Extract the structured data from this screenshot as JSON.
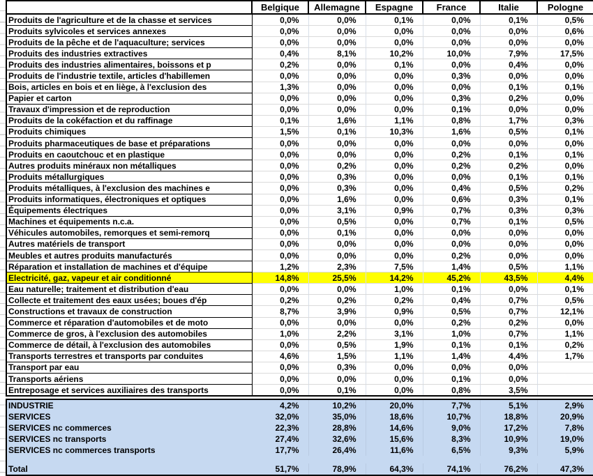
{
  "colors": {
    "highlight_yellow": "#ffff00",
    "summary_blue": "#c6d9f1"
  },
  "header": {
    "corner_label": "",
    "countries": [
      "Belgique",
      "Allemagne",
      "Espagne",
      "France",
      "Italie",
      "Pologne"
    ]
  },
  "table": {
    "rows": [
      {
        "label": "Produits de l'agriculture et de la chasse et services",
        "values": [
          "0,0%",
          "0,0%",
          "0,1%",
          "0,0%",
          "0,1%",
          "0,5%"
        ],
        "highlight": false
      },
      {
        "label": "Produits sylvicoles et services annexes",
        "values": [
          "0,0%",
          "0,0%",
          "0,0%",
          "0,0%",
          "0,0%",
          "0,6%"
        ],
        "highlight": false
      },
      {
        "label": "Produits de la pêche et de l'aquaculture; services",
        "values": [
          "0,0%",
          "0,0%",
          "0,0%",
          "0,0%",
          "0,0%",
          "0,0%"
        ],
        "highlight": false
      },
      {
        "label": "Produits des industries extractives",
        "values": [
          "0,4%",
          "8,1%",
          "10,2%",
          "10,0%",
          "7,9%",
          "17,5%"
        ],
        "highlight": false
      },
      {
        "label": "Produits des industries alimentaires, boissons et p",
        "values": [
          "0,2%",
          "0,0%",
          "0,1%",
          "0,0%",
          "0,4%",
          "0,0%"
        ],
        "highlight": false
      },
      {
        "label": "Produits de l'industrie textile, articles d'habillemen",
        "values": [
          "0,0%",
          "0,0%",
          "0,0%",
          "0,3%",
          "0,0%",
          "0,0%"
        ],
        "highlight": false
      },
      {
        "label": "Bois, articles en bois et en liège, à l'exclusion des",
        "values": [
          "1,3%",
          "0,0%",
          "0,0%",
          "0,0%",
          "0,1%",
          "0,1%"
        ],
        "highlight": false
      },
      {
        "label": "Papier et carton",
        "values": [
          "0,0%",
          "0,0%",
          "0,0%",
          "0,3%",
          "0,2%",
          "0,0%"
        ],
        "highlight": false
      },
      {
        "label": "Travaux d'impression et de reproduction",
        "values": [
          "0,0%",
          "0,0%",
          "0,0%",
          "0,1%",
          "0,0%",
          "0,0%"
        ],
        "highlight": false
      },
      {
        "label": "Produits de la cokéfaction et du raffinage",
        "values": [
          "0,1%",
          "1,6%",
          "1,1%",
          "0,8%",
          "1,7%",
          "0,3%"
        ],
        "highlight": false
      },
      {
        "label": "Produits chimiques",
        "values": [
          "1,5%",
          "0,1%",
          "10,3%",
          "1,6%",
          "0,5%",
          "0,1%"
        ],
        "highlight": false
      },
      {
        "label": "Produits pharmaceutiques de base et préparations",
        "values": [
          "0,0%",
          "0,0%",
          "0,0%",
          "0,0%",
          "0,0%",
          "0,0%"
        ],
        "highlight": false
      },
      {
        "label": "Produits en caoutchouc et en plastique",
        "values": [
          "0,0%",
          "0,0%",
          "0,0%",
          "0,2%",
          "0,1%",
          "0,1%"
        ],
        "highlight": false
      },
      {
        "label": "Autres produits minéraux non métalliques",
        "values": [
          "0,0%",
          "0,2%",
          "0,0%",
          "0,2%",
          "0,2%",
          "0,0%"
        ],
        "highlight": false
      },
      {
        "label": "Produits métallurgiques",
        "values": [
          "0,0%",
          "0,3%",
          "0,0%",
          "0,0%",
          "0,1%",
          "0,1%"
        ],
        "highlight": false
      },
      {
        "label": "Produits métalliques, à l'exclusion des machines e",
        "values": [
          "0,0%",
          "0,3%",
          "0,0%",
          "0,4%",
          "0,5%",
          "0,2%"
        ],
        "highlight": false
      },
      {
        "label": "Produits informatiques, électroniques et optiques",
        "values": [
          "0,0%",
          "1,6%",
          "0,0%",
          "0,6%",
          "0,3%",
          "0,1%"
        ],
        "highlight": false
      },
      {
        "label": "Équipements électriques",
        "values": [
          "0,0%",
          "3,1%",
          "0,9%",
          "0,7%",
          "0,3%",
          "0,3%"
        ],
        "highlight": false
      },
      {
        "label": "Machines et équipements n.c.a.",
        "values": [
          "0,0%",
          "0,5%",
          "0,0%",
          "0,7%",
          "0,1%",
          "0,5%"
        ],
        "highlight": false
      },
      {
        "label": "Véhicules automobiles, remorques et semi-remorq",
        "values": [
          "0,0%",
          "0,1%",
          "0,0%",
          "0,0%",
          "0,0%",
          "0,0%"
        ],
        "highlight": false
      },
      {
        "label": "Autres matériels de transport",
        "values": [
          "0,0%",
          "0,0%",
          "0,0%",
          "0,0%",
          "0,0%",
          "0,0%"
        ],
        "highlight": false
      },
      {
        "label": "Meubles et autres produits manufacturés",
        "values": [
          "0,0%",
          "0,0%",
          "0,0%",
          "0,2%",
          "0,0%",
          "0,0%"
        ],
        "highlight": false
      },
      {
        "label": "Réparation et installation de machines et d'équipe",
        "values": [
          "1,2%",
          "2,3%",
          "7,5%",
          "1,4%",
          "0,5%",
          "1,1%"
        ],
        "highlight": false
      },
      {
        "label": "Electricité, gaz, vapeur et air conditionné",
        "values": [
          "14,8%",
          "25,5%",
          "14,2%",
          "45,2%",
          "43,5%",
          "4,4%"
        ],
        "highlight": true
      },
      {
        "label": "Eau naturelle; traitement et distribution d'eau",
        "values": [
          "0,0%",
          "0,0%",
          "1,0%",
          "0,1%",
          "0,0%",
          "0,1%"
        ],
        "highlight": false
      },
      {
        "label": "Collecte et traitement des eaux usées; boues d'ép",
        "values": [
          "0,2%",
          "0,2%",
          "0,2%",
          "0,4%",
          "0,7%",
          "0,5%"
        ],
        "highlight": false
      },
      {
        "label": "Constructions et travaux de construction",
        "values": [
          "8,7%",
          "3,9%",
          "0,9%",
          "0,5%",
          "0,7%",
          "12,1%"
        ],
        "highlight": false
      },
      {
        "label": "Commerce et réparation d'automobiles et de moto",
        "values": [
          "0,0%",
          "0,0%",
          "0,0%",
          "0,2%",
          "0,2%",
          "0,0%"
        ],
        "highlight": false
      },
      {
        "label": "Commerce de gros, à l'exclusion des automobiles",
        "values": [
          "1,0%",
          "2,2%",
          "3,1%",
          "1,0%",
          "0,7%",
          "1,1%"
        ],
        "highlight": false
      },
      {
        "label": "Commerce de détail, à l'exclusion des automobiles",
        "values": [
          "0,0%",
          "0,5%",
          "1,9%",
          "0,1%",
          "0,1%",
          "0,2%"
        ],
        "highlight": false
      },
      {
        "label": "Transports terrestres et transports par conduites",
        "values": [
          "4,6%",
          "1,5%",
          "1,1%",
          "1,4%",
          "4,4%",
          "1,7%"
        ],
        "highlight": false
      },
      {
        "label": "Transport par eau",
        "values": [
          "0,0%",
          "0,3%",
          "0,0%",
          "0,0%",
          "0,0%",
          ""
        ],
        "highlight": false
      },
      {
        "label": "Transports aériens",
        "values": [
          "0,0%",
          "0,0%",
          "0,0%",
          "0,1%",
          "0,0%",
          ""
        ],
        "highlight": false
      },
      {
        "label": "Entreposage et services auxiliaires des transports",
        "values": [
          "0,0%",
          "0,1%",
          "0,0%",
          "0,8%",
          "3,5%",
          ""
        ],
        "highlight": false
      }
    ]
  },
  "summary": {
    "rows": [
      {
        "label": "INDUSTRIE",
        "values": [
          "4,2%",
          "10,2%",
          "20,0%",
          "7,7%",
          "5,1%",
          "2,9%"
        ]
      },
      {
        "label": "SERVICES",
        "values": [
          "32,0%",
          "35,0%",
          "18,6%",
          "10,7%",
          "18,8%",
          "20,9%"
        ]
      },
      {
        "label": "SERVICES nc commerces",
        "values": [
          "22,3%",
          "28,8%",
          "14,6%",
          "9,0%",
          "17,2%",
          "7,8%"
        ]
      },
      {
        "label": "SERVICES nc transports",
        "values": [
          "27,4%",
          "32,6%",
          "15,6%",
          "8,3%",
          "10,9%",
          "19,0%"
        ]
      },
      {
        "label": "SERVICES nc commerces transports",
        "values": [
          "17,7%",
          "26,4%",
          "11,6%",
          "6,5%",
          "9,3%",
          "5,9%"
        ]
      }
    ],
    "total": {
      "label": "Total",
      "values": [
        "51,7%",
        "78,9%",
        "64,3%",
        "74,1%",
        "76,2%",
        "47,3%"
      ]
    }
  }
}
